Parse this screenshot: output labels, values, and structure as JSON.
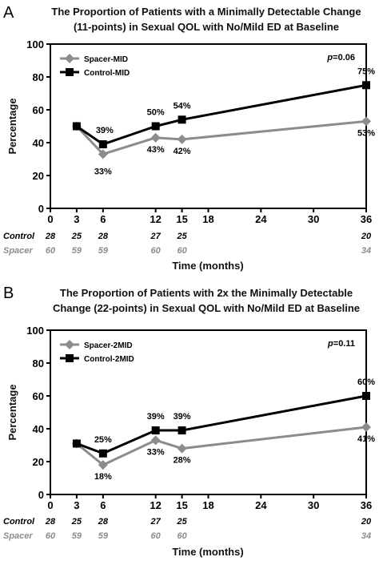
{
  "colors": {
    "control": "#000000",
    "spacer": "#8c8c8c"
  },
  "x_axis": {
    "ticks": [
      0,
      3,
      6,
      12,
      15,
      18,
      24,
      30,
      36
    ],
    "label": "Time (months)"
  },
  "y_axis": {
    "ticks": [
      0,
      20,
      40,
      60,
      80,
      100
    ],
    "label": "Percentage"
  },
  "chart_data": [
    {
      "type": "line",
      "panel": "A",
      "title_lines": [
        "The Proportion of Patients with a Minimally Detectable Change",
        "(11-points) in Sexual QOL with No/Mild ED at Baseline"
      ],
      "xlabel": "Time (months)",
      "ylabel": "Percentage",
      "xlim": [
        0,
        36
      ],
      "ylim": [
        0,
        100
      ],
      "grid": false,
      "legend_position": "top-left",
      "p_value": "=0.06",
      "series": [
        {
          "name": "Spacer-MID",
          "color": "#8c8c8c",
          "marker": "diamond",
          "x": [
            3,
            6,
            12,
            15,
            36
          ],
          "y": [
            50,
            33,
            43,
            42,
            53
          ],
          "labels": [
            "",
            "33%",
            "43%",
            "42%",
            "53%"
          ]
        },
        {
          "name": "Control-MID",
          "color": "#000000",
          "marker": "square",
          "x": [
            3,
            6,
            12,
            15,
            36
          ],
          "y": [
            50,
            39,
            50,
            54,
            75
          ],
          "labels": [
            "",
            "39%",
            "50%",
            "54%",
            "75%"
          ]
        }
      ],
      "n_at_risk": {
        "control": {
          "name": "Control",
          "x": [
            0,
            3,
            6,
            12,
            15,
            36
          ],
          "values": [
            "28",
            "25",
            "28",
            "27",
            "25",
            "20"
          ]
        },
        "spacer": {
          "name": "Spacer",
          "x": [
            0,
            3,
            6,
            12,
            15,
            36
          ],
          "values": [
            "60",
            "59",
            "59",
            "60",
            "60",
            "34"
          ]
        }
      }
    },
    {
      "type": "line",
      "panel": "B",
      "title_lines": [
        "The Proportion of Patients with 2x the Minimally Detectable",
        "Change (22-points) in Sexual QOL with No/Mild ED at Baseline"
      ],
      "xlabel": "Time (months)",
      "ylabel": "Percentage",
      "xlim": [
        0,
        36
      ],
      "ylim": [
        0,
        100
      ],
      "grid": false,
      "legend_position": "top-left",
      "p_value": "=0.11",
      "series": [
        {
          "name": "Spacer-2MID",
          "color": "#8c8c8c",
          "marker": "diamond",
          "x": [
            3,
            6,
            12,
            15,
            36
          ],
          "y": [
            31,
            18,
            33,
            28,
            41
          ],
          "labels": [
            "",
            "18%",
            "33%",
            "28%",
            "41%"
          ]
        },
        {
          "name": "Control-2MID",
          "color": "#000000",
          "marker": "square",
          "x": [
            3,
            6,
            12,
            15,
            36
          ],
          "y": [
            31,
            25,
            39,
            39,
            60
          ],
          "labels": [
            "",
            "25%",
            "39%",
            "39%",
            "60%"
          ]
        }
      ],
      "n_at_risk": {
        "control": {
          "name": "Control",
          "x": [
            0,
            3,
            6,
            12,
            15,
            36
          ],
          "values": [
            "28",
            "25",
            "28",
            "27",
            "25",
            "20"
          ]
        },
        "spacer": {
          "name": "Spacer",
          "x": [
            0,
            3,
            6,
            12,
            15,
            36
          ],
          "values": [
            "60",
            "59",
            "59",
            "60",
            "60",
            "34"
          ]
        }
      }
    }
  ]
}
